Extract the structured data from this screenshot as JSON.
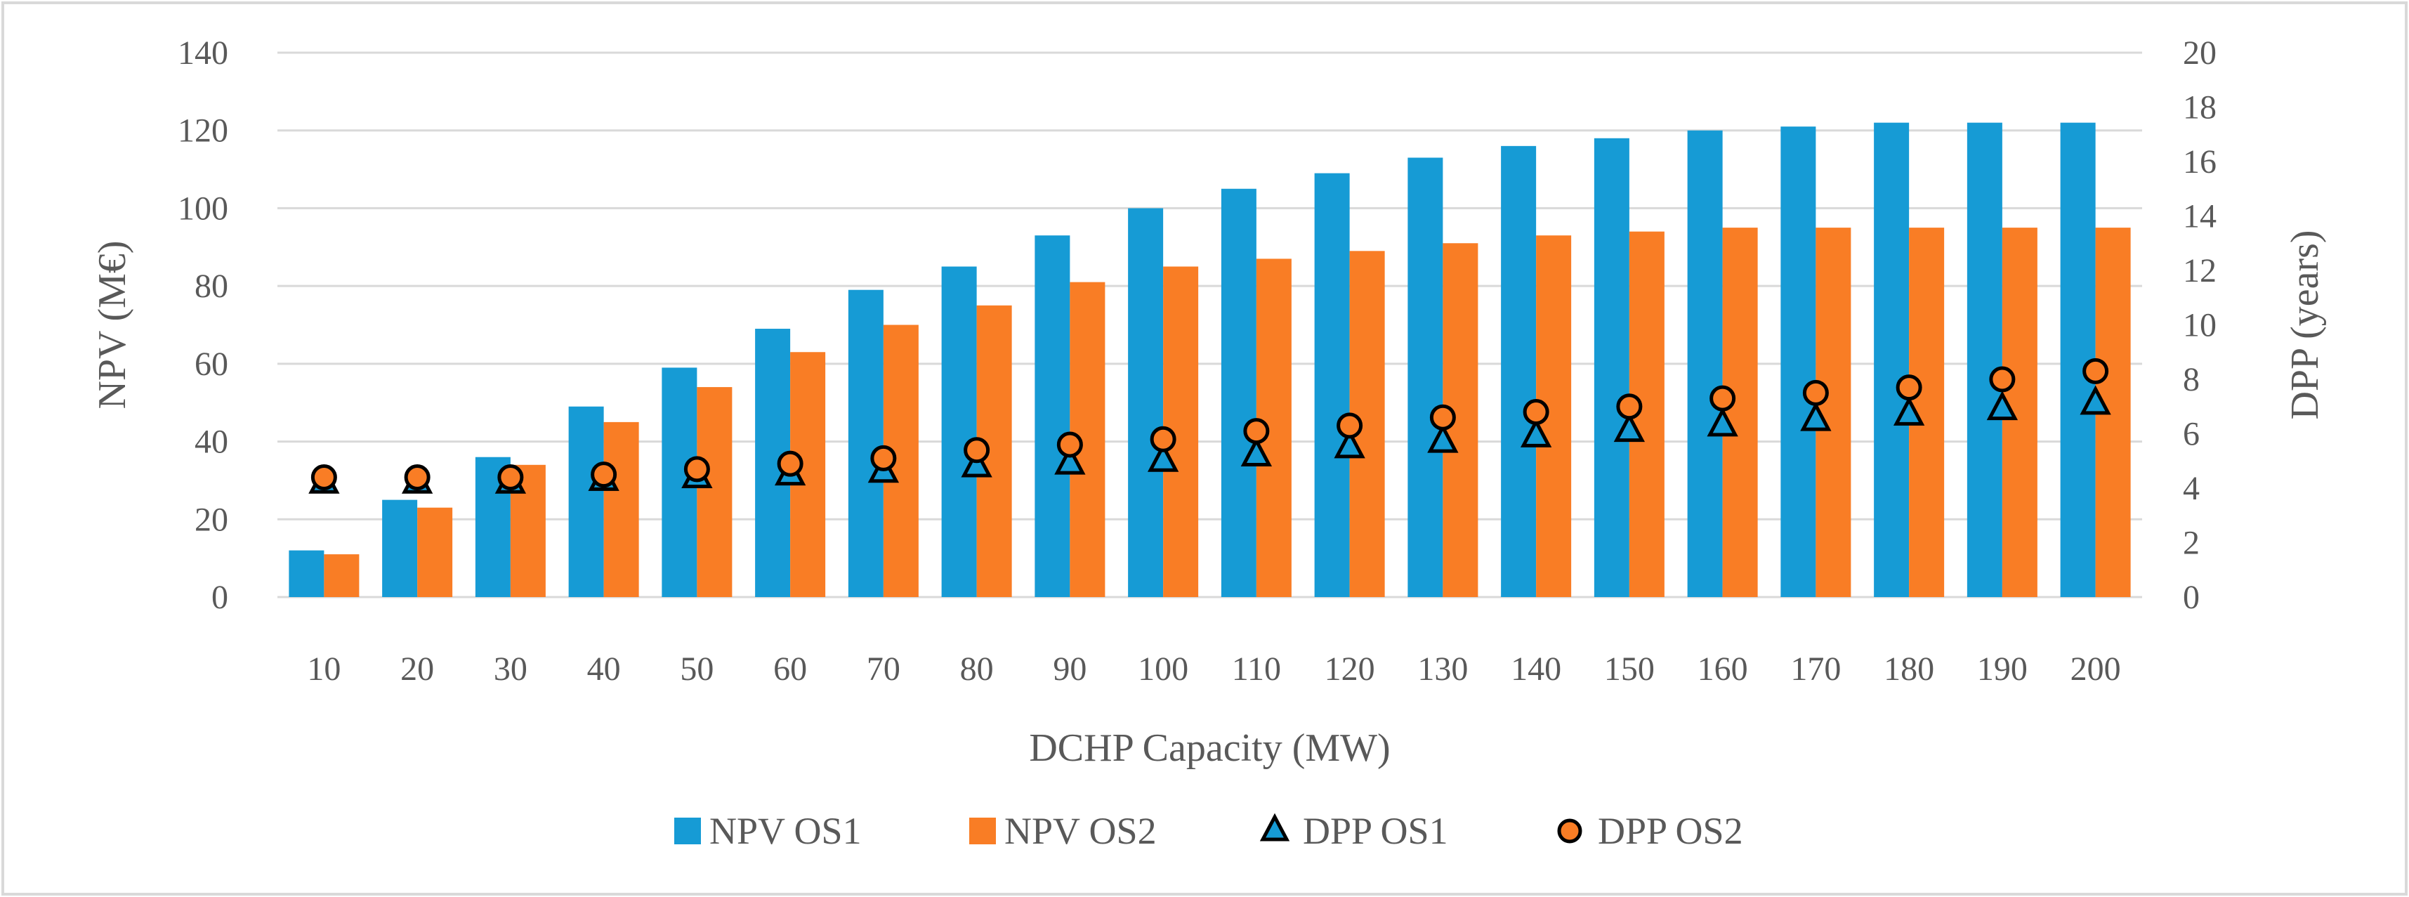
{
  "chart_data": {
    "type": "bar",
    "title": "",
    "xlabel": "DCHP Capacity (MW)",
    "ylabel": "NPV (M€)",
    "y2label": "DPP (years)",
    "categories": [
      "10",
      "20",
      "30",
      "40",
      "50",
      "60",
      "70",
      "80",
      "90",
      "100",
      "110",
      "120",
      "130",
      "140",
      "150",
      "160",
      "170",
      "180",
      "190",
      "200"
    ],
    "ylim": [
      0,
      140
    ],
    "y_ticks": [
      "0",
      "20",
      "40",
      "60",
      "80",
      "100",
      "120",
      "140"
    ],
    "y2lim": [
      0,
      20
    ],
    "y2_ticks": [
      "0",
      "2",
      "4",
      "6",
      "8",
      "10",
      "12",
      "14",
      "16",
      "18",
      "20"
    ],
    "grid": true,
    "legend_position": "bottom",
    "series": [
      {
        "name": "NPV OS1",
        "kind": "bar",
        "axis": "left",
        "color": "#169bd5",
        "values": [
          12,
          25,
          36,
          49,
          59,
          69,
          79,
          85,
          93,
          100,
          105,
          109,
          113,
          116,
          118,
          120,
          121,
          122,
          122,
          122
        ]
      },
      {
        "name": "NPV OS2",
        "kind": "bar",
        "axis": "left",
        "color": "#f97d25",
        "values": [
          11,
          23,
          34,
          45,
          54,
          63,
          70,
          75,
          81,
          85,
          87,
          89,
          91,
          93,
          94,
          95,
          95,
          95,
          95,
          95
        ]
      },
      {
        "name": "DPP OS1",
        "kind": "triangle",
        "axis": "right",
        "color": "#169bd5",
        "values": [
          4.2,
          4.2,
          4.2,
          4.3,
          4.4,
          4.5,
          4.6,
          4.8,
          4.9,
          5.0,
          5.2,
          5.5,
          5.7,
          5.9,
          6.1,
          6.3,
          6.5,
          6.7,
          6.9,
          7.1
        ]
      },
      {
        "name": "DPP OS2",
        "kind": "circle",
        "axis": "right",
        "color": "#f97d25",
        "values": [
          4.4,
          4.4,
          4.4,
          4.5,
          4.7,
          4.9,
          5.1,
          5.4,
          5.6,
          5.8,
          6.1,
          6.3,
          6.6,
          6.8,
          7.0,
          7.3,
          7.5,
          7.7,
          8.0,
          8.3
        ]
      }
    ]
  }
}
